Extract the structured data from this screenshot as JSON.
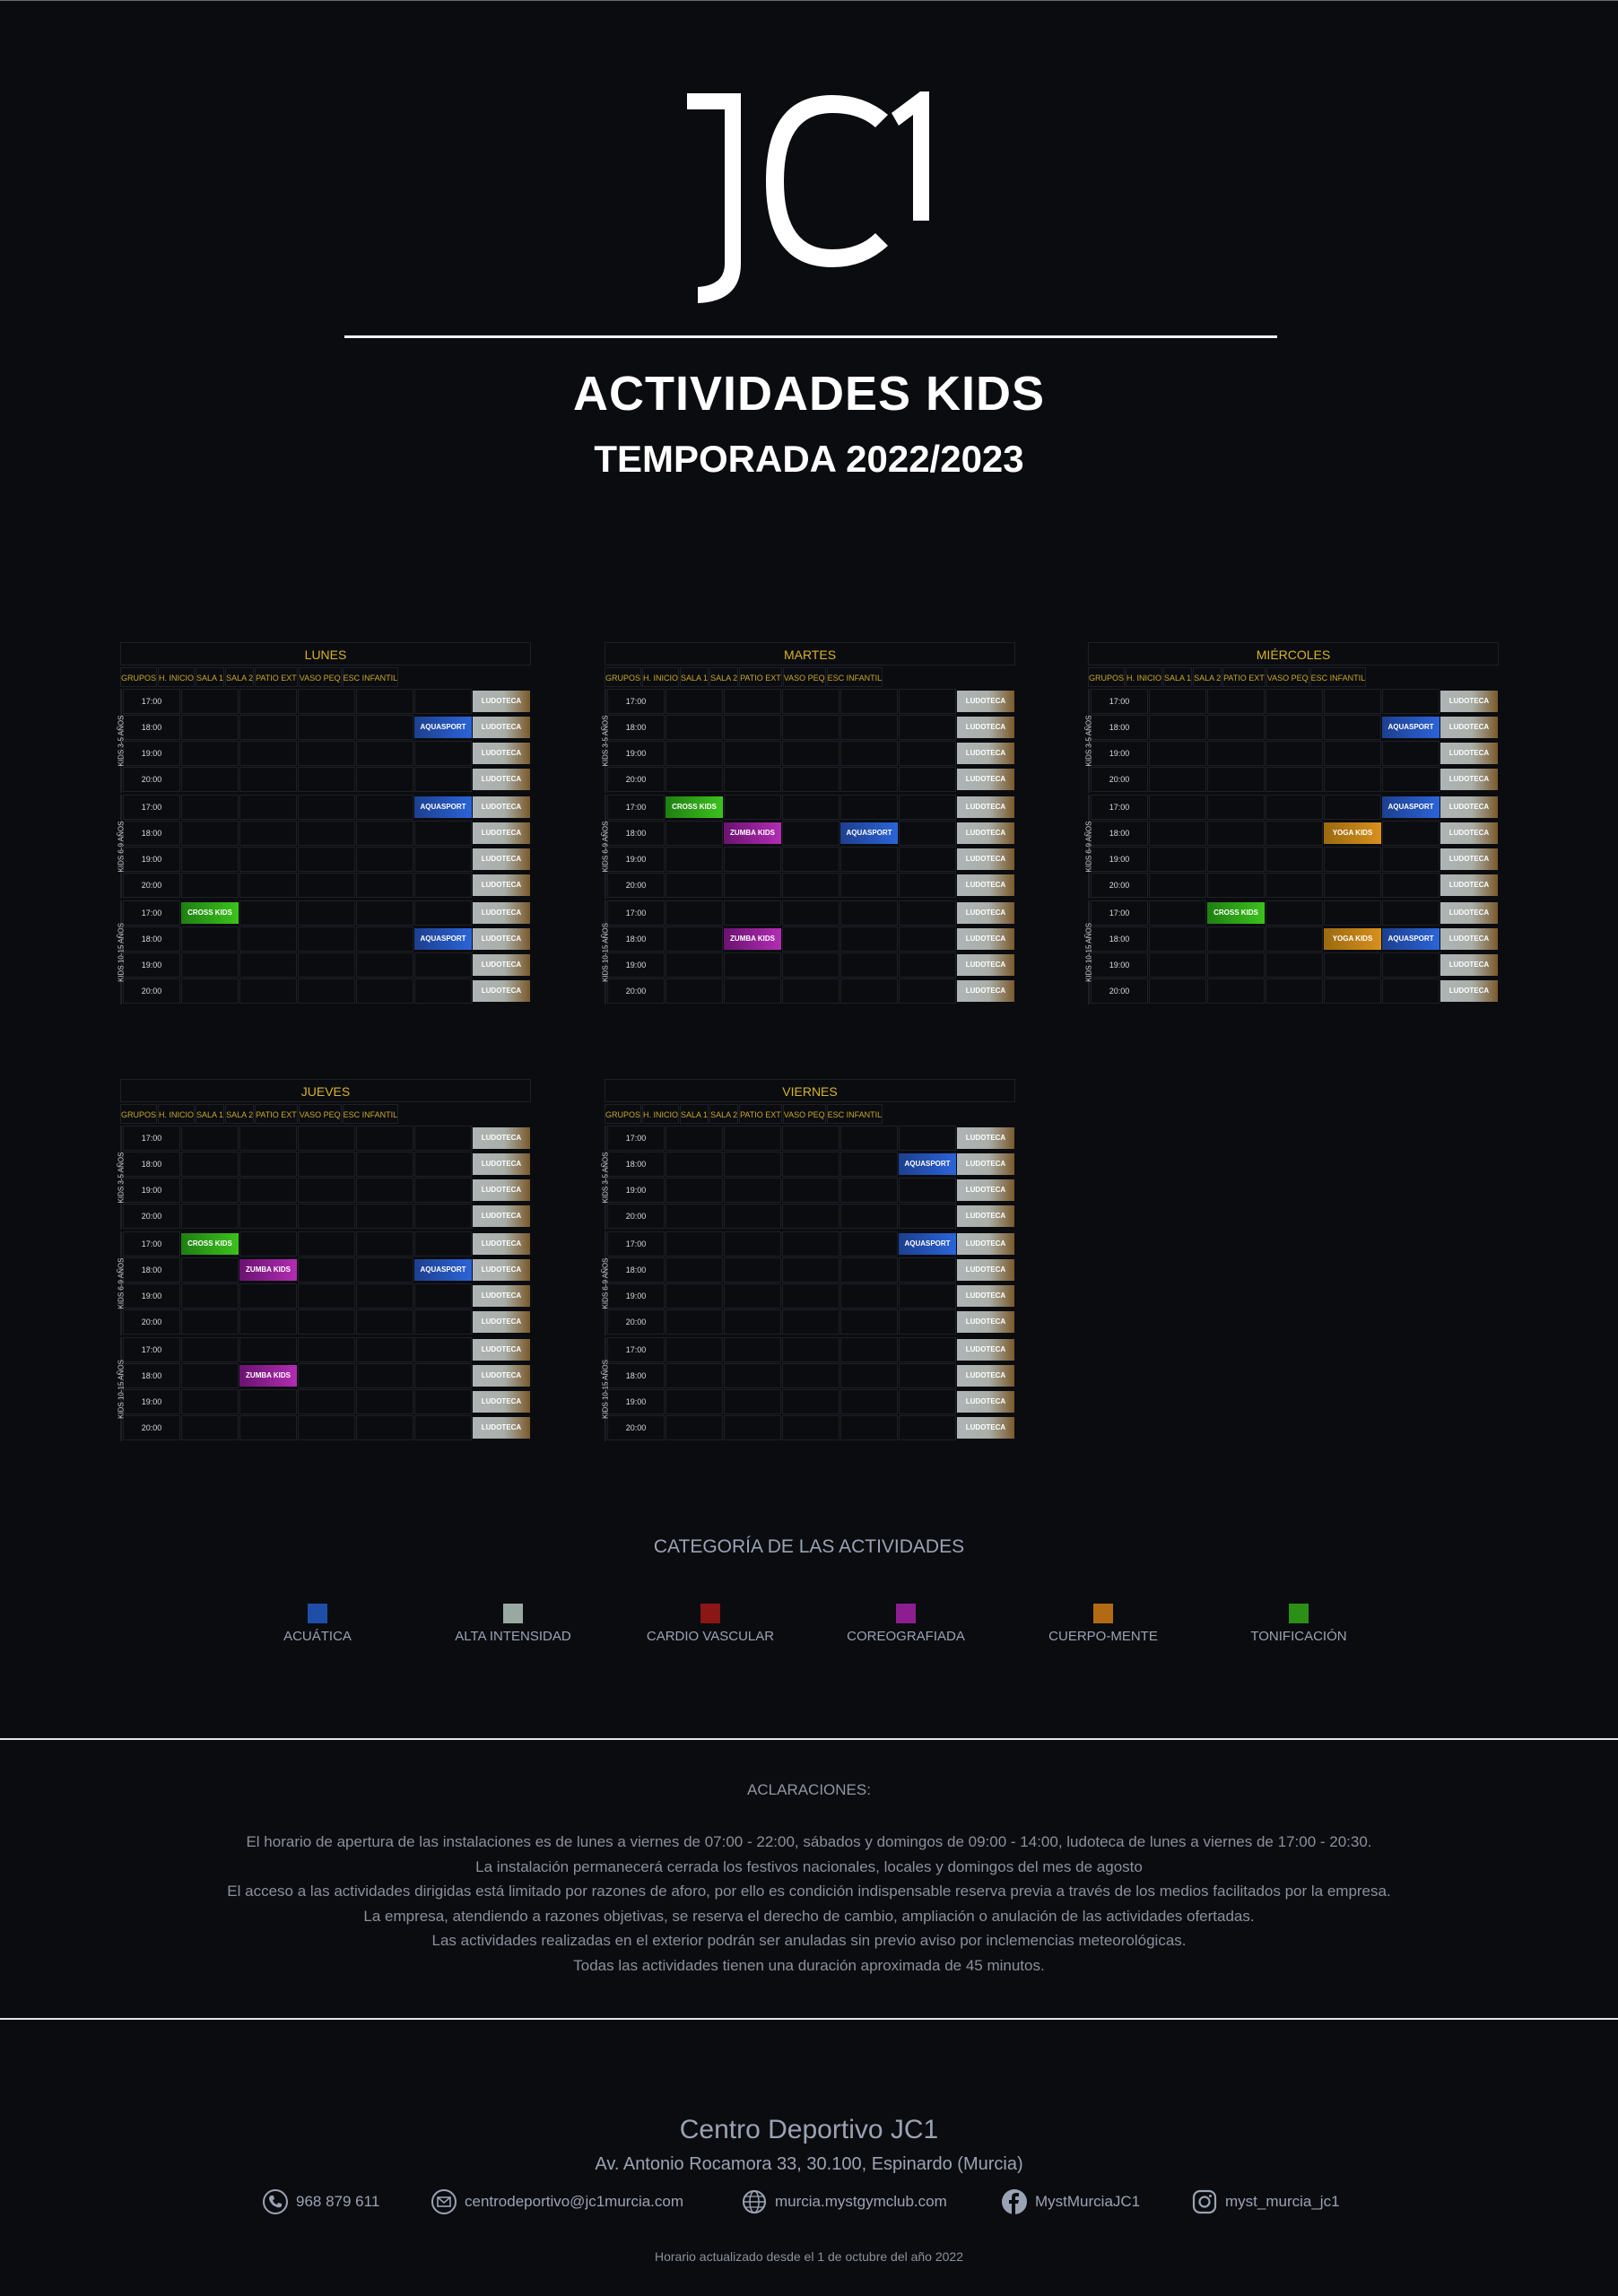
{
  "header": {
    "logo_text": "JC1",
    "title": "ACTIVIDADES KIDS",
    "subtitle": "TEMPORADA 2022/2023"
  },
  "columns": [
    "GRUPOS",
    "H. INICIO",
    "SALA 1",
    "SALA 2",
    "PATIO EXT",
    "VASO PEQ",
    "ESC INFANTIL"
  ],
  "groups": [
    "KIDS 3-5 AÑOS",
    "KIDS 6-9 AÑOS",
    "KIDS 10-15 AÑOS"
  ],
  "times": [
    "17:00",
    "18:00",
    "19:00",
    "20:00"
  ],
  "days": [
    {
      "name": "LUNES",
      "activities": [
        {
          "g": 0,
          "t": 1,
          "c": 4,
          "label": "AQUASPORT",
          "cat": "aqua"
        },
        {
          "g": 1,
          "t": 0,
          "c": 4,
          "label": "AQUASPORT",
          "cat": "aqua"
        },
        {
          "g": 2,
          "t": 0,
          "c": 0,
          "label": "CROSS KIDS",
          "cat": "cross"
        },
        {
          "g": 2,
          "t": 1,
          "c": 4,
          "label": "AQUASPORT",
          "cat": "aqua"
        }
      ]
    },
    {
      "name": "MARTES",
      "activities": [
        {
          "g": 1,
          "t": 0,
          "c": 0,
          "label": "CROSS KIDS",
          "cat": "cross"
        },
        {
          "g": 1,
          "t": 1,
          "c": 1,
          "label": "ZUMBA KIDS",
          "cat": "zumba"
        },
        {
          "g": 1,
          "t": 1,
          "c": 3,
          "label": "AQUASPORT",
          "cat": "aqua"
        },
        {
          "g": 2,
          "t": 1,
          "c": 1,
          "label": "ZUMBA KIDS",
          "cat": "zumba"
        }
      ]
    },
    {
      "name": "MIÉRCOLES",
      "activities": [
        {
          "g": 0,
          "t": 1,
          "c": 4,
          "label": "AQUASPORT",
          "cat": "aqua"
        },
        {
          "g": 1,
          "t": 0,
          "c": 4,
          "label": "AQUASPORT",
          "cat": "aqua"
        },
        {
          "g": 1,
          "t": 1,
          "c": 3,
          "label": "YOGA KIDS",
          "cat": "yoga"
        },
        {
          "g": 2,
          "t": 0,
          "c": 1,
          "label": "CROSS KIDS",
          "cat": "cross"
        },
        {
          "g": 2,
          "t": 1,
          "c": 3,
          "label": "YOGA KIDS",
          "cat": "yoga"
        },
        {
          "g": 2,
          "t": 1,
          "c": 4,
          "label": "AQUASPORT",
          "cat": "aqua"
        }
      ]
    },
    {
      "name": "JUEVES",
      "activities": [
        {
          "g": 1,
          "t": 0,
          "c": 0,
          "label": "CROSS KIDS",
          "cat": "cross"
        },
        {
          "g": 1,
          "t": 1,
          "c": 1,
          "label": "ZUMBA KIDS",
          "cat": "zumba"
        },
        {
          "g": 1,
          "t": 1,
          "c": 4,
          "label": "AQUASPORT",
          "cat": "aqua"
        },
        {
          "g": 2,
          "t": 1,
          "c": 1,
          "label": "ZUMBA KIDS",
          "cat": "zumba"
        }
      ]
    },
    {
      "name": "VIERNES",
      "activities": [
        {
          "g": 0,
          "t": 1,
          "c": 4,
          "label": "AQUASPORT",
          "cat": "aqua"
        },
        {
          "g": 1,
          "t": 0,
          "c": 4,
          "label": "AQUASPORT",
          "cat": "aqua"
        }
      ]
    }
  ],
  "ludoteca_label": "LUDOTECA",
  "categories": {
    "title": "CATEGORÍA DE LAS ACTIVIDADES",
    "items": [
      {
        "label": "ACUÁTICA",
        "color": "#1f4ea8"
      },
      {
        "label": "ALTA INTENSIDAD",
        "color": "#9aa8a2"
      },
      {
        "label": "CARDIO VASCULAR",
        "color": "#8a1616"
      },
      {
        "label": "COREOGRAFIADA",
        "color": "#8e1d92"
      },
      {
        "label": "CUERPO-MENTE",
        "color": "#b36a14"
      },
      {
        "label": "TONIFICACIÓN",
        "color": "#2c8f16"
      }
    ]
  },
  "aclaraciones": {
    "title": "ACLARACIONES:",
    "lines": [
      "El horario de apertura de las instalaciones es de lunes a viernes de 07:00 - 22:00, sábados y domingos de 09:00 - 14:00, ludoteca de lunes a viernes de 17:00 - 20:30.",
      "La instalación permanecerá cerrada los festivos nacionales, locales y domingos del mes de agosto",
      "El acceso a las actividades dirigidas está limitado por razones de aforo, por ello es condición indispensable reserva previa a través de los medios facilitados por la empresa.",
      "La empresa, atendiendo a razones objetivas, se reserva el derecho de cambio, ampliación o anulación de las actividades ofertadas.",
      "Las actividades realizadas en el exterior podrán ser anuladas sin previo aviso por inclemencias meteorológicas.",
      "Todas las actividades tienen una duración aproximada de 45 minutos."
    ]
  },
  "footer": {
    "name": "Centro Deportivo JC1",
    "address": "Av. Antonio Rocamora 33, 30.100, Espinardo (Murcia)",
    "phone": "968 879 611",
    "email": "centrodeportivo@jc1murcia.com",
    "web": "murcia.mystgymclub.com",
    "facebook": "MystMurciaJC1",
    "instagram": "myst_murcia_jc1",
    "updated": "Horario actualizado desde el 1 de octubre del año 2022"
  }
}
